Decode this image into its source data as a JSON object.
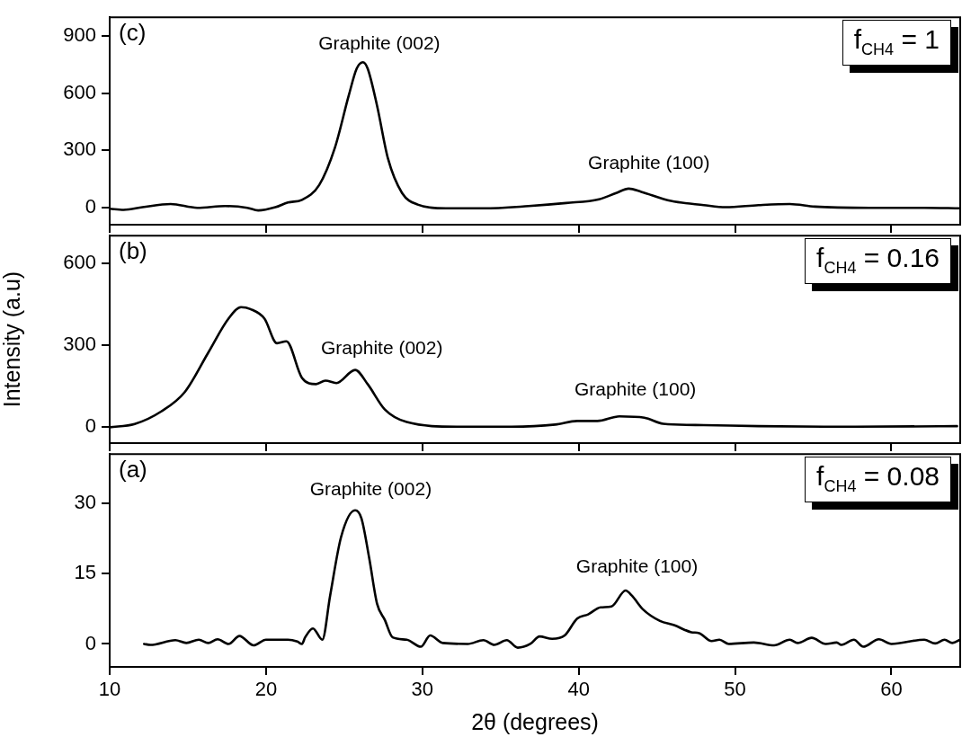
{
  "chart_data": [
    {
      "type": "line",
      "xlim": [
        10,
        64.4
      ],
      "xticks": [
        10,
        20,
        30,
        40,
        50,
        60
      ],
      "ylim": [
        -92,
        1000
      ],
      "yticks": [
        0,
        300,
        600,
        900
      ],
      "tick_labels": "y",
      "annotations": [
        "(c)",
        "f$_{CH4}$ = 1",
        "Graphite (002)",
        "Graphite (100)"
      ],
      "series": [
        {
          "color": "#000000",
          "x": [
            10,
            10.9,
            12.1,
            13.9,
            15.6,
            17.4,
            18.8,
            19.5,
            20.6,
            21.4,
            22.3,
            23.4,
            24.4,
            25.3,
            25.8,
            26.2,
            26.5,
            27.1,
            27.8,
            28.7,
            29.7,
            31.5,
            33.9,
            36.8,
            39.2,
            41.3,
            42.4,
            43.2,
            44.0,
            45.9,
            48.0,
            49.4,
            51.5,
            53.5,
            55.1,
            58.6,
            62.1,
            64.4
          ],
          "values": [
            -8,
            -14,
            0,
            17,
            -3,
            6,
            -3,
            -17,
            0,
            25,
            39,
            117,
            312,
            591,
            730,
            763,
            730,
            535,
            256,
            75,
            14,
            -6,
            -6,
            6,
            22,
            42,
            75,
            98,
            81,
            33,
            11,
            0,
            11,
            17,
            3,
            -3,
            -3,
            -6
          ]
        }
      ]
    },
    {
      "type": "line",
      "xlim": [
        10,
        64.4
      ],
      "xticks": [
        10,
        20,
        30,
        40,
        50,
        60
      ],
      "ylim": [
        -58,
        702
      ],
      "yticks": [
        0,
        300,
        600
      ],
      "tick_labels": "y",
      "ylabel": "Intensity (a.u)",
      "annotations": [
        "(b)",
        "f$_{CH4}$ = 0.16",
        "Graphite (002)",
        "Graphite (100)"
      ],
      "series": [
        {
          "color": "#000000",
          "x": [
            10,
            11.6,
            13.3,
            14.8,
            16.3,
            17.6,
            18.4,
            19.0,
            19.9,
            20.7,
            21.3,
            22.3,
            23.2,
            23.8,
            24.5,
            25.7,
            26.5,
            27.6,
            29.0,
            32.2,
            35.7,
            38.5,
            39.9,
            41.2,
            42.6,
            44.2,
            45.4,
            48.0,
            51.5,
            56.8,
            64.2
          ],
          "values": [
            0,
            12,
            58,
            129,
            273,
            398,
            440,
            433,
            398,
            308,
            315,
            181,
            158,
            171,
            162,
            210,
            158,
            65,
            19,
            2,
            2,
            10,
            23,
            23,
            40,
            35,
            13,
            8,
            4,
            2,
            4
          ]
        }
      ]
    },
    {
      "type": "line",
      "xlim": [
        10,
        64.4
      ],
      "xticks": [
        10,
        20,
        30,
        40,
        50,
        60
      ],
      "ylim": [
        -4.9,
        40.5
      ],
      "yticks": [
        0,
        15,
        30
      ],
      "xlabel": "2θ (degrees)",
      "annotations": [
        "(a)",
        "f$_{CH4}$ = 0.08",
        "Graphite (002)",
        "Graphite (100)"
      ],
      "series": [
        {
          "color": "#000000",
          "x": [
            12.2,
            12.6,
            14.2,
            14.9,
            15.7,
            16.3,
            16.9,
            17.6,
            18.3,
            19.2,
            20.0,
            21.4,
            22.0,
            22.3,
            22.5,
            23.0,
            23.6,
            24.1,
            24.8,
            25.7,
            26.1,
            26.6,
            27.1,
            27.6,
            28.1,
            29.0,
            29.9,
            30.5,
            31.3,
            32.9,
            33.9,
            34.6,
            35.4,
            36.1,
            36.9,
            37.5,
            38.3,
            39.1,
            39.9,
            40.6,
            41.4,
            42.1,
            43.0,
            43.4,
            44.1,
            45.2,
            46.1,
            47.2,
            47.7,
            48.5,
            49.0,
            49.6,
            51.2,
            52.5,
            53.5,
            54.0,
            54.9,
            55.8,
            56.5,
            56.8,
            57.6,
            58.2,
            59.2,
            60.0,
            62.1,
            62.8,
            63.4,
            63.9,
            64.4
          ],
          "values": [
            0,
            -0.2,
            0.8,
            0.2,
            0.9,
            0.2,
            1.0,
            0,
            1.7,
            -0.3,
            0.9,
            0.9,
            0.5,
            0,
            1.4,
            3.3,
            0.9,
            10.3,
            22.8,
            28.5,
            26.8,
            18.3,
            8.6,
            5.1,
            1.4,
            0.9,
            -0.6,
            1.8,
            0.2,
            0,
            0.8,
            -0.2,
            0.8,
            -0.8,
            0,
            1.6,
            1.1,
            1.8,
            5.4,
            6.3,
            7.8,
            8.0,
            11.4,
            10.3,
            7.4,
            4.9,
            4.0,
            2.5,
            2.3,
            0.6,
            0.9,
            0,
            0.3,
            -0.3,
            0.9,
            0.2,
            1.3,
            0,
            0.3,
            -0.2,
            0.9,
            -0.6,
            1.0,
            0,
            0.9,
            0.1,
            0.9,
            0.2,
            0.9
          ]
        }
      ]
    }
  ]
}
